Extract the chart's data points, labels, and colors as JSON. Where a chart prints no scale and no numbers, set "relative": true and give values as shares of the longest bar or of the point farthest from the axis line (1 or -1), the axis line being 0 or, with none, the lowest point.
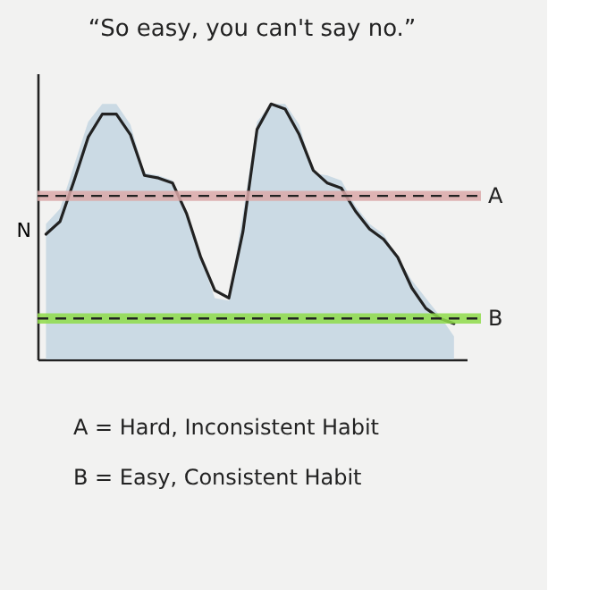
{
  "chart_data": {
    "type": "line",
    "title": "“So easy, you can't say no.”",
    "ylabel": "N",
    "relative": true,
    "marker": "none",
    "categories": [
      null,
      null,
      null,
      null,
      null,
      null,
      null,
      null,
      null,
      null,
      null,
      null,
      null,
      null,
      null,
      null,
      null,
      null,
      null,
      null,
      null,
      null,
      null,
      null,
      null,
      null,
      null,
      null,
      null,
      null
    ],
    "series": [
      {
        "type": "area",
        "color": "#c7d7e2",
        "values": [
          0.53,
          0.59,
          0.76,
          0.93,
          1.0,
          1.0,
          0.92,
          0.73,
          0.72,
          0.7,
          0.57,
          0.4,
          0.24,
          0.23,
          0.57,
          0.93,
          1.0,
          1.0,
          0.92,
          0.73,
          0.72,
          0.7,
          0.6,
          0.53,
          0.49,
          0.4,
          0.31,
          0.24,
          0.17,
          0.09
        ]
      },
      {
        "type": "line",
        "color": "#222222",
        "line_style": "solid",
        "values": [
          0.49,
          0.54,
          0.7,
          0.87,
          0.96,
          0.96,
          0.88,
          0.72,
          0.71,
          0.69,
          0.57,
          0.4,
          0.27,
          0.24,
          0.5,
          0.9,
          1.0,
          0.98,
          0.88,
          0.74,
          0.69,
          0.67,
          0.58,
          0.51,
          0.47,
          0.4,
          0.28,
          0.2,
          0.16,
          0.14
        ]
      }
    ],
    "ref_lines": [
      {
        "axis": "y",
        "value": 0.64,
        "label": "A",
        "color": "#222222",
        "line_style": "dashed"
      },
      {
        "axis": "y",
        "value": 0.16,
        "label": "B",
        "color": "#222222",
        "line_style": "dashed"
      }
    ],
    "bands": [
      {
        "axis": "y",
        "from": 0.62,
        "to": 0.66,
        "color": "#dba8a8"
      },
      {
        "axis": "y",
        "from": 0.14,
        "to": 0.18,
        "color": "#8fdc4a"
      }
    ],
    "annotations": [
      "A = Hard, Inconsistent Habit",
      "B = Easy, Consistent Habit"
    ]
  }
}
